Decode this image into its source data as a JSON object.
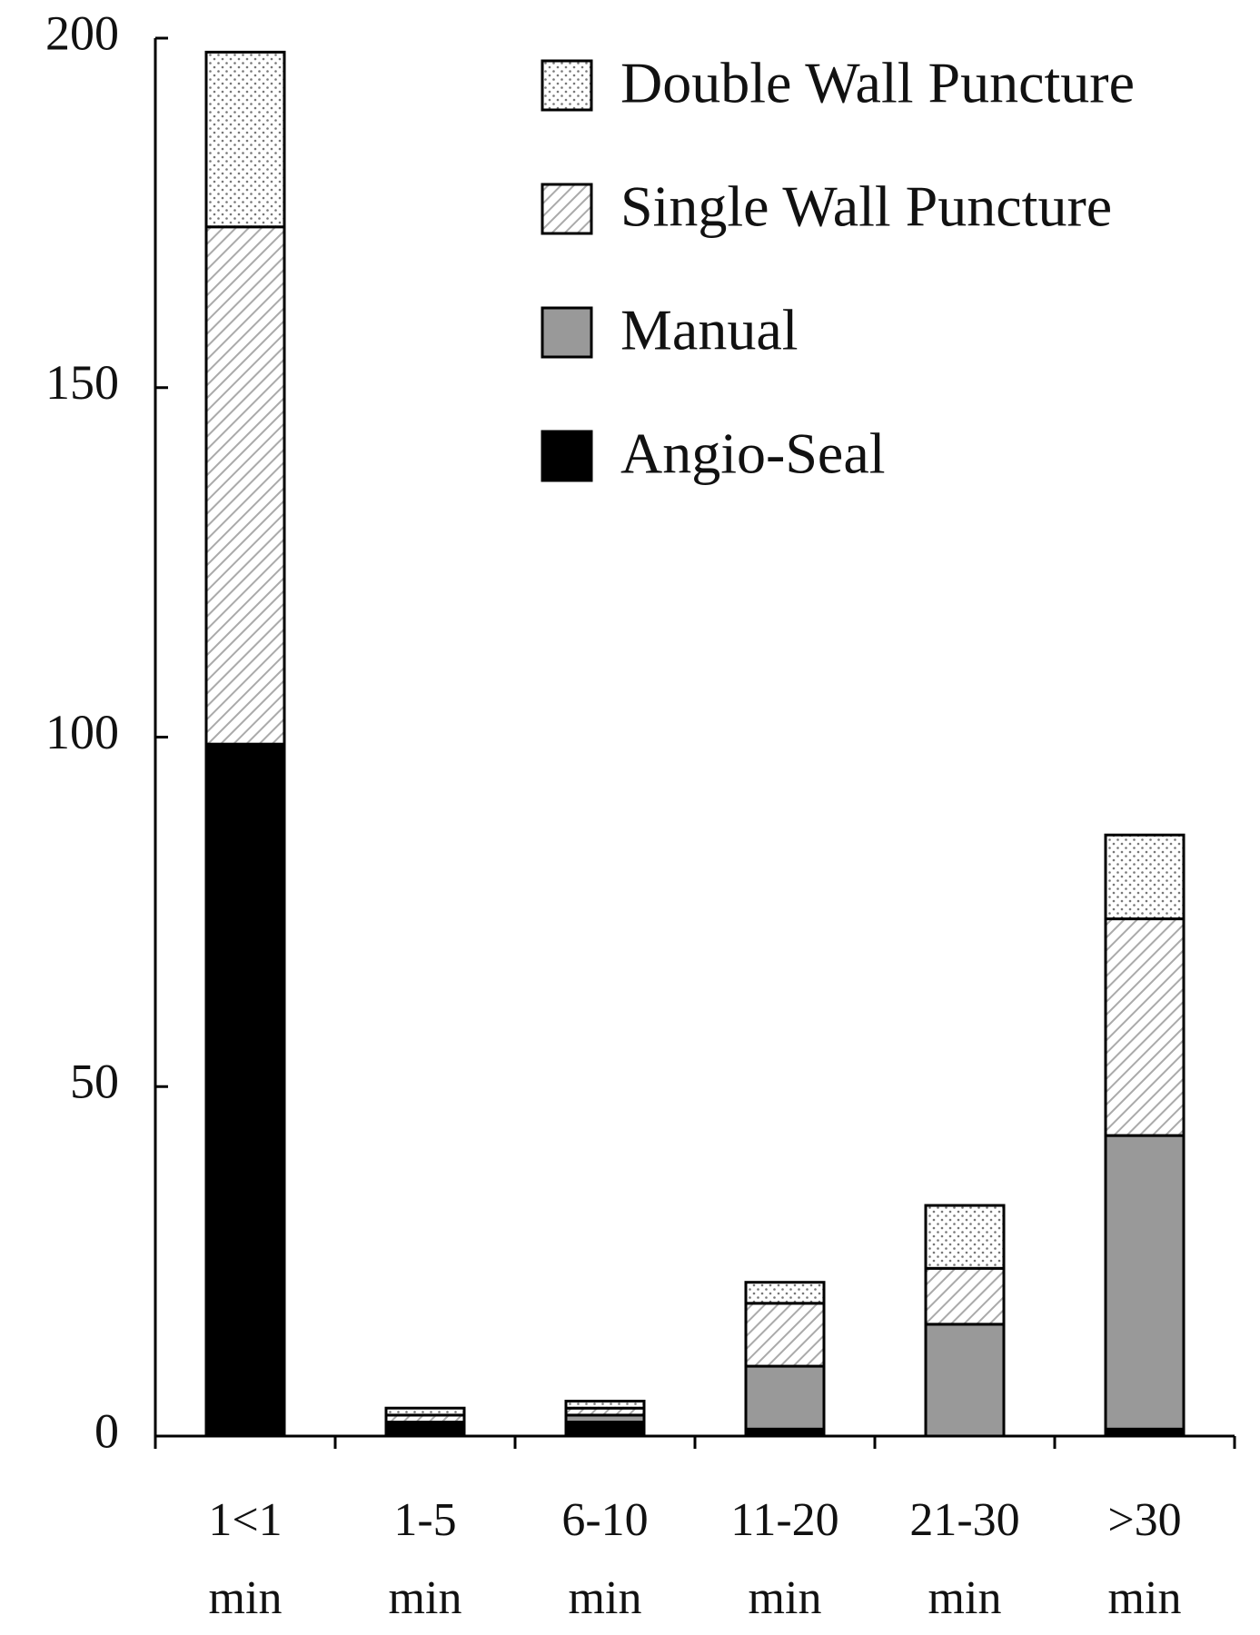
{
  "chart_data": {
    "type": "stacked-bar",
    "categories": [
      [
        "1<1",
        "min"
      ],
      [
        "1-5",
        "min"
      ],
      [
        "6-10",
        "min"
      ],
      [
        "11-20",
        "min"
      ],
      [
        "21-30",
        "min"
      ],
      [
        ">30",
        "min"
      ]
    ],
    "series": [
      {
        "name": "Angio-Seal",
        "color": "#000000",
        "pattern": "solid",
        "values": [
          99,
          2,
          2,
          1,
          0,
          1
        ]
      },
      {
        "name": "Manual",
        "color": "#999999",
        "pattern": "solid",
        "values": [
          0,
          0,
          1,
          9,
          16,
          42
        ]
      },
      {
        "name": "Single Wall Puncture",
        "color": "#ffffff",
        "pattern": "hatch",
        "values": [
          74,
          1,
          1,
          9,
          8,
          31
        ]
      },
      {
        "name": "Double Wall Puncture",
        "color": "#ffffff",
        "pattern": "dots",
        "values": [
          25,
          1,
          1,
          3,
          9,
          12
        ]
      }
    ],
    "ylim": [
      0,
      200
    ],
    "yticks": [
      0,
      50,
      100,
      150,
      200
    ],
    "grid": false
  }
}
